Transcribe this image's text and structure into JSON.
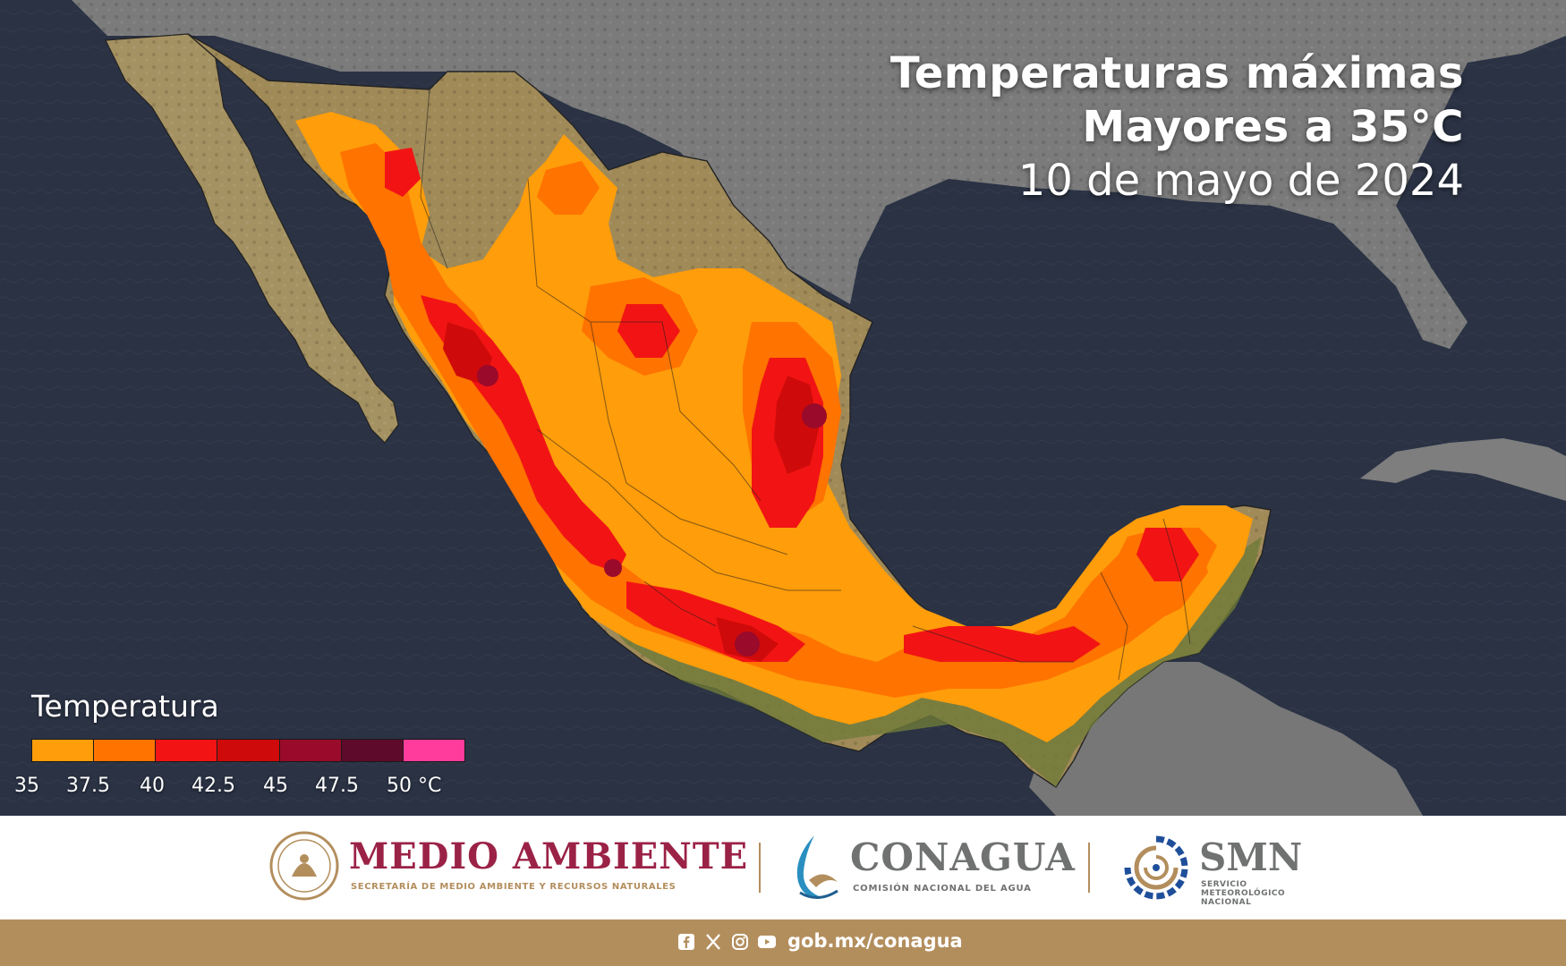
{
  "title": {
    "line1": "Temperaturas máximas",
    "line2": "Mayores a 35°C",
    "line3": "10 de mayo de 2024"
  },
  "legend": {
    "title": "Temperatura",
    "swatches": [
      "#ff9d0a",
      "#ff7300",
      "#f21414",
      "#cf0a0a",
      "#9a0a2a",
      "#5e0a2a",
      "#ff3c9b"
    ],
    "ticks": [
      "35",
      "37.5",
      "40",
      "42.5",
      "45",
      "47.5",
      "50 °C"
    ]
  },
  "colors": {
    "ocean": "#2a3244",
    "land_gray": "#7d7d7d",
    "land_natural": "#a28f5c",
    "t35": "#ff9d0a",
    "t37": "#ff7300",
    "t40": "#f21414",
    "t42": "#cf0a0a",
    "t45": "#9a0a2a",
    "t47": "#5e0a2a",
    "brand_guinda": "#9b2247",
    "brand_gold": "#b38e5d",
    "brand_gray": "#6f7271"
  },
  "logos": {
    "medio_ambiente": {
      "title": "MEDIO AMBIENTE",
      "subtitle": "SECRETARÍA DE MEDIO AMBIENTE Y RECURSOS NATURALES",
      "icon": "mexico-seal-icon"
    },
    "conagua": {
      "title": "CONAGUA",
      "subtitle": "COMISIÓN NACIONAL DEL AGUA",
      "icon": "conagua-wave-icon"
    },
    "smn": {
      "title": "SMN",
      "subtitle": "SERVICIO METEOROLÓGICO NACIONAL",
      "icon": "smn-spiral-icon"
    }
  },
  "footer": {
    "social": [
      "facebook-icon",
      "x-icon",
      "instagram-icon",
      "youtube-icon"
    ],
    "url": "gob.mx/conagua"
  }
}
